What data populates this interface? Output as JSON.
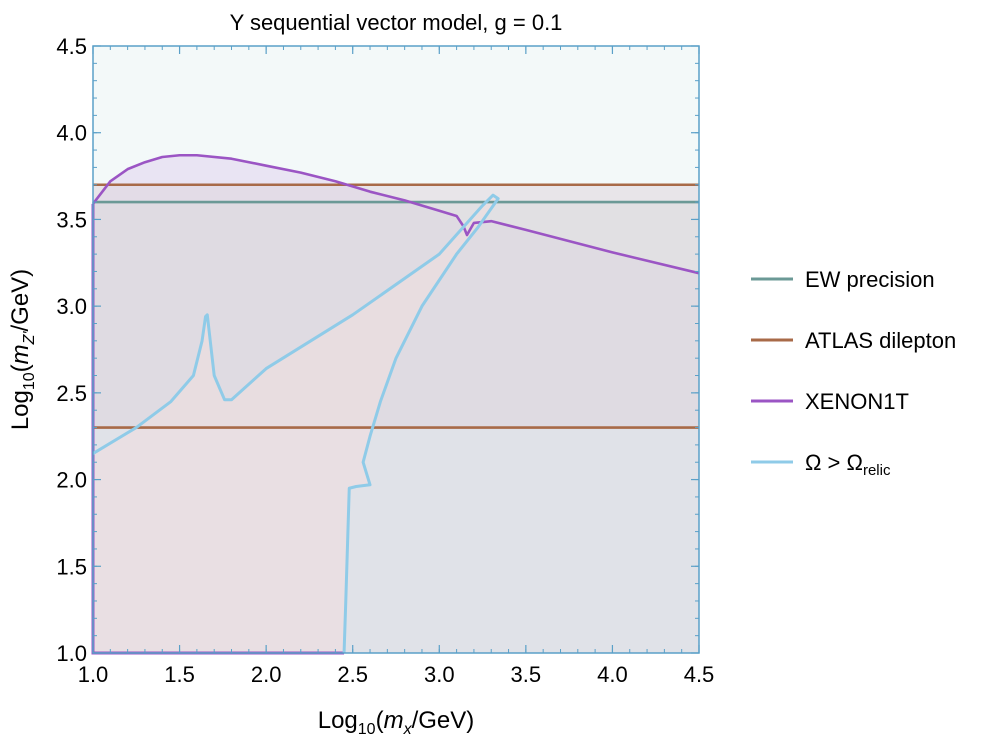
{
  "chart_data": {
    "type": "line",
    "title": "Y sequential vector model, g = 0.1",
    "xlabel": {
      "prefix": "Log",
      "sub": "10",
      "open": "(",
      "var": "m",
      "var_sub": "x",
      "unit": "/GeV)"
    },
    "ylabel": {
      "prefix": "Log",
      "sub": "10",
      "open": "(",
      "var": "m",
      "var_sub": "Z'",
      "unit": "/GeV)"
    },
    "xlim": [
      1.0,
      4.5
    ],
    "ylim": [
      1.0,
      4.5
    ],
    "xticks": [
      "1.0",
      "1.5",
      "2.0",
      "2.5",
      "3.0",
      "3.5",
      "4.0",
      "4.5"
    ],
    "yticks": [
      "1.0",
      "1.5",
      "2.0",
      "2.5",
      "3.0",
      "3.5",
      "4.0",
      "4.5"
    ],
    "grid": false,
    "legend_position": "right",
    "background_color": "#f3f9f9",
    "series": [
      {
        "name": "EW precision",
        "color": "#6b9996",
        "fill": "#d4dfdc",
        "y_const": 3.6
      },
      {
        "name": "ATLAS dilepton",
        "color": "#a86a48",
        "fill": "#ded6dc",
        "bands": [
          [
            2.3,
            3.7
          ]
        ]
      },
      {
        "name": "XENON1T",
        "color": "#9b55c4",
        "fill": "#e6dcf0",
        "x": [
          1.0,
          1.1,
          1.2,
          1.3,
          1.4,
          1.5,
          1.6,
          1.8,
          2.0,
          2.2,
          2.4,
          2.6,
          2.8,
          3.0,
          3.1,
          3.14,
          3.16,
          3.2,
          3.3,
          3.5,
          4.0,
          4.5
        ],
        "y": [
          3.59,
          3.72,
          3.79,
          3.83,
          3.86,
          3.87,
          3.87,
          3.85,
          3.81,
          3.77,
          3.72,
          3.66,
          3.61,
          3.55,
          3.52,
          3.46,
          3.41,
          3.48,
          3.49,
          3.44,
          3.31,
          3.19
        ]
      },
      {
        "name": "Ω > Ω_relic",
        "label_main": "Ω > Ω",
        "label_sub": "relic",
        "color": "#8fcbe8",
        "fill": "#eedde0",
        "x": [
          1.0,
          1.25,
          1.45,
          1.58,
          1.63,
          1.65,
          1.66,
          1.7,
          1.76,
          1.8,
          2.0,
          2.5,
          3.0,
          3.25,
          3.31,
          3.34,
          3.22,
          3.1,
          2.9,
          2.75,
          2.66,
          2.6,
          2.56,
          2.6,
          2.52,
          2.48,
          2.46,
          2.45
        ],
        "y": [
          2.15,
          2.3,
          2.45,
          2.6,
          2.8,
          2.94,
          2.95,
          2.6,
          2.46,
          2.46,
          2.64,
          2.95,
          3.3,
          3.58,
          3.64,
          3.62,
          3.45,
          3.3,
          3.0,
          2.7,
          2.45,
          2.25,
          2.1,
          1.97,
          1.96,
          1.95,
          1.3,
          1.0
        ]
      }
    ]
  }
}
